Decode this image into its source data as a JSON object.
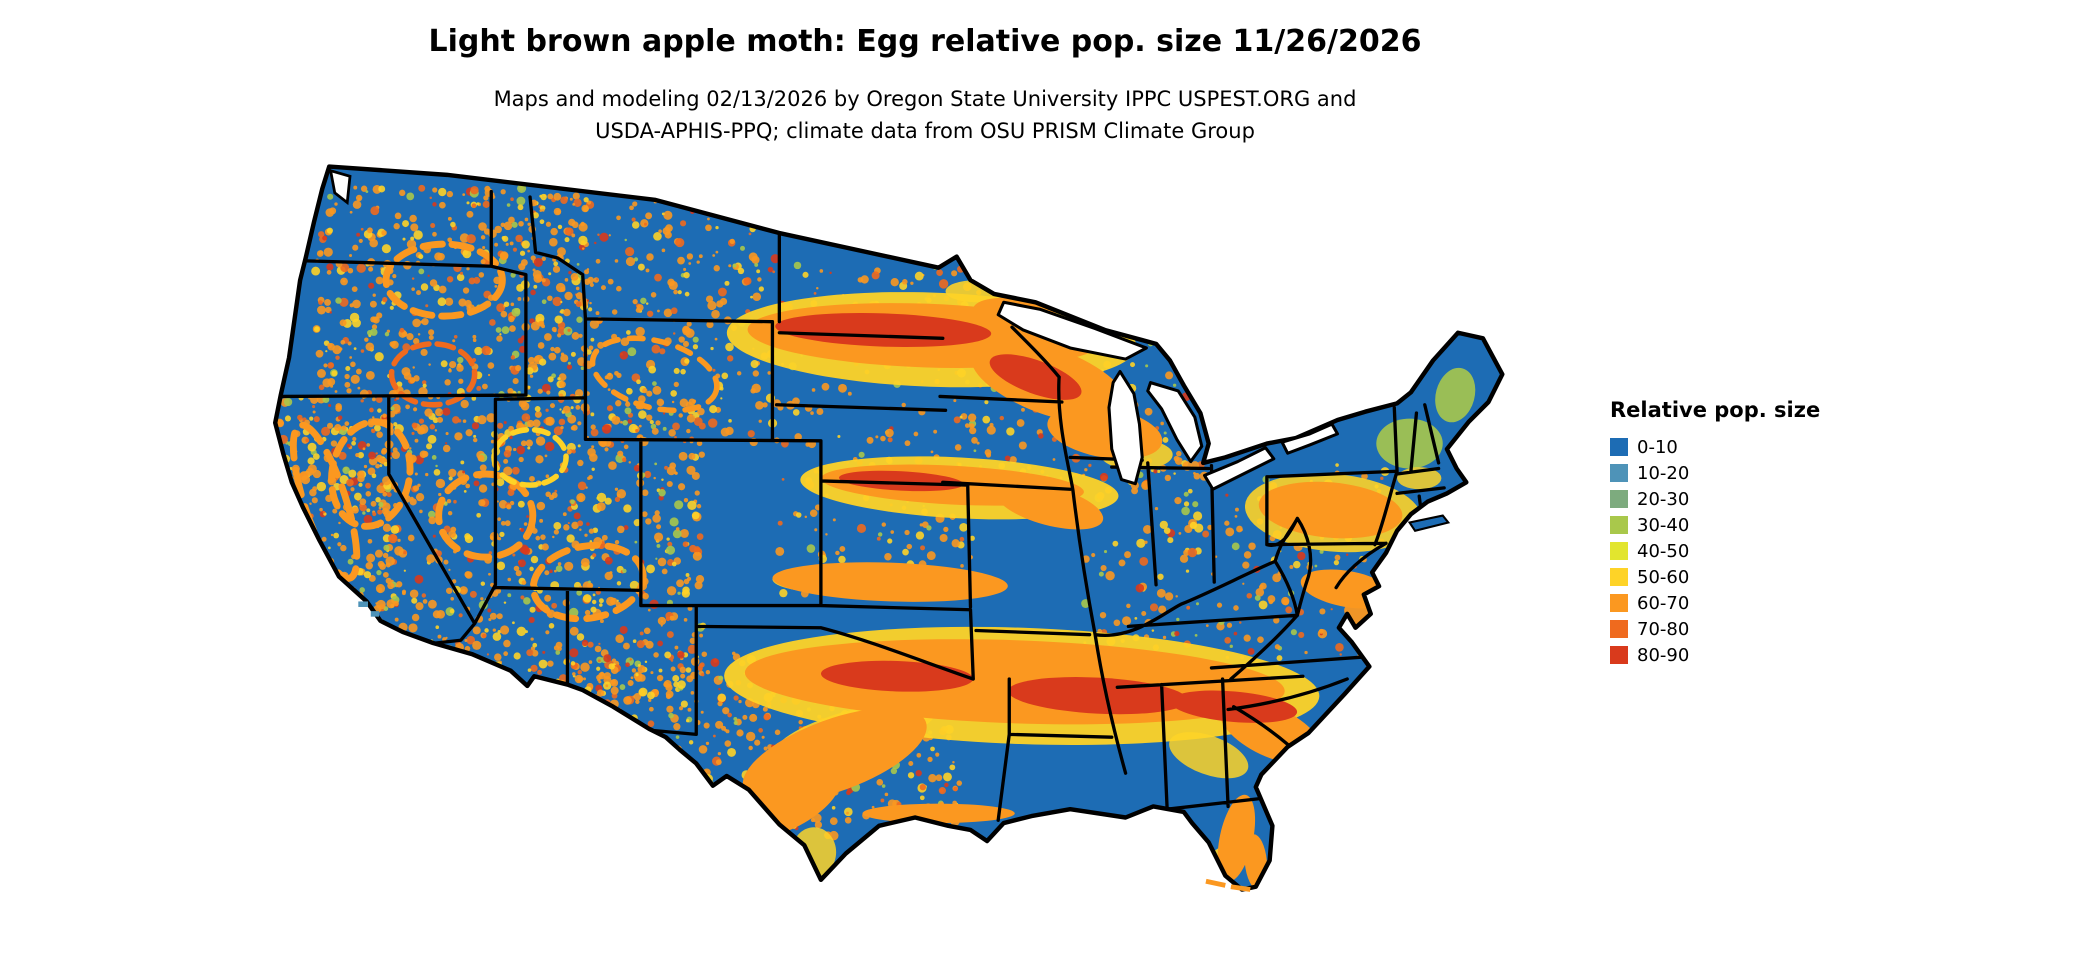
{
  "header": {
    "title": "Light brown apple moth: Egg relative pop. size 11/26/2026",
    "subtitle_line1": "Maps and modeling 02/13/2026 by Oregon State University IPPC USPEST.ORG and",
    "subtitle_line2": "USDA-APHIS-PPQ; climate data from OSU PRISM Climate Group"
  },
  "legend": {
    "title": "Relative pop. size",
    "items": [
      {
        "label": "0-10",
        "color": "#1d6cb4"
      },
      {
        "label": "10-20",
        "color": "#4e93b8"
      },
      {
        "label": "20-30",
        "color": "#7dab7e"
      },
      {
        "label": "30-40",
        "color": "#a9c84b"
      },
      {
        "label": "40-50",
        "color": "#e2e52e"
      },
      {
        "label": "50-60",
        "color": "#fed327"
      },
      {
        "label": "60-70",
        "color": "#fb9820"
      },
      {
        "label": "70-80",
        "color": "#ef6a1e"
      },
      {
        "label": "80-90",
        "color": "#d93a1c"
      }
    ]
  },
  "map": {
    "land_base": "#1d6cb4",
    "water": "#ffffff",
    "border": "#000000"
  }
}
